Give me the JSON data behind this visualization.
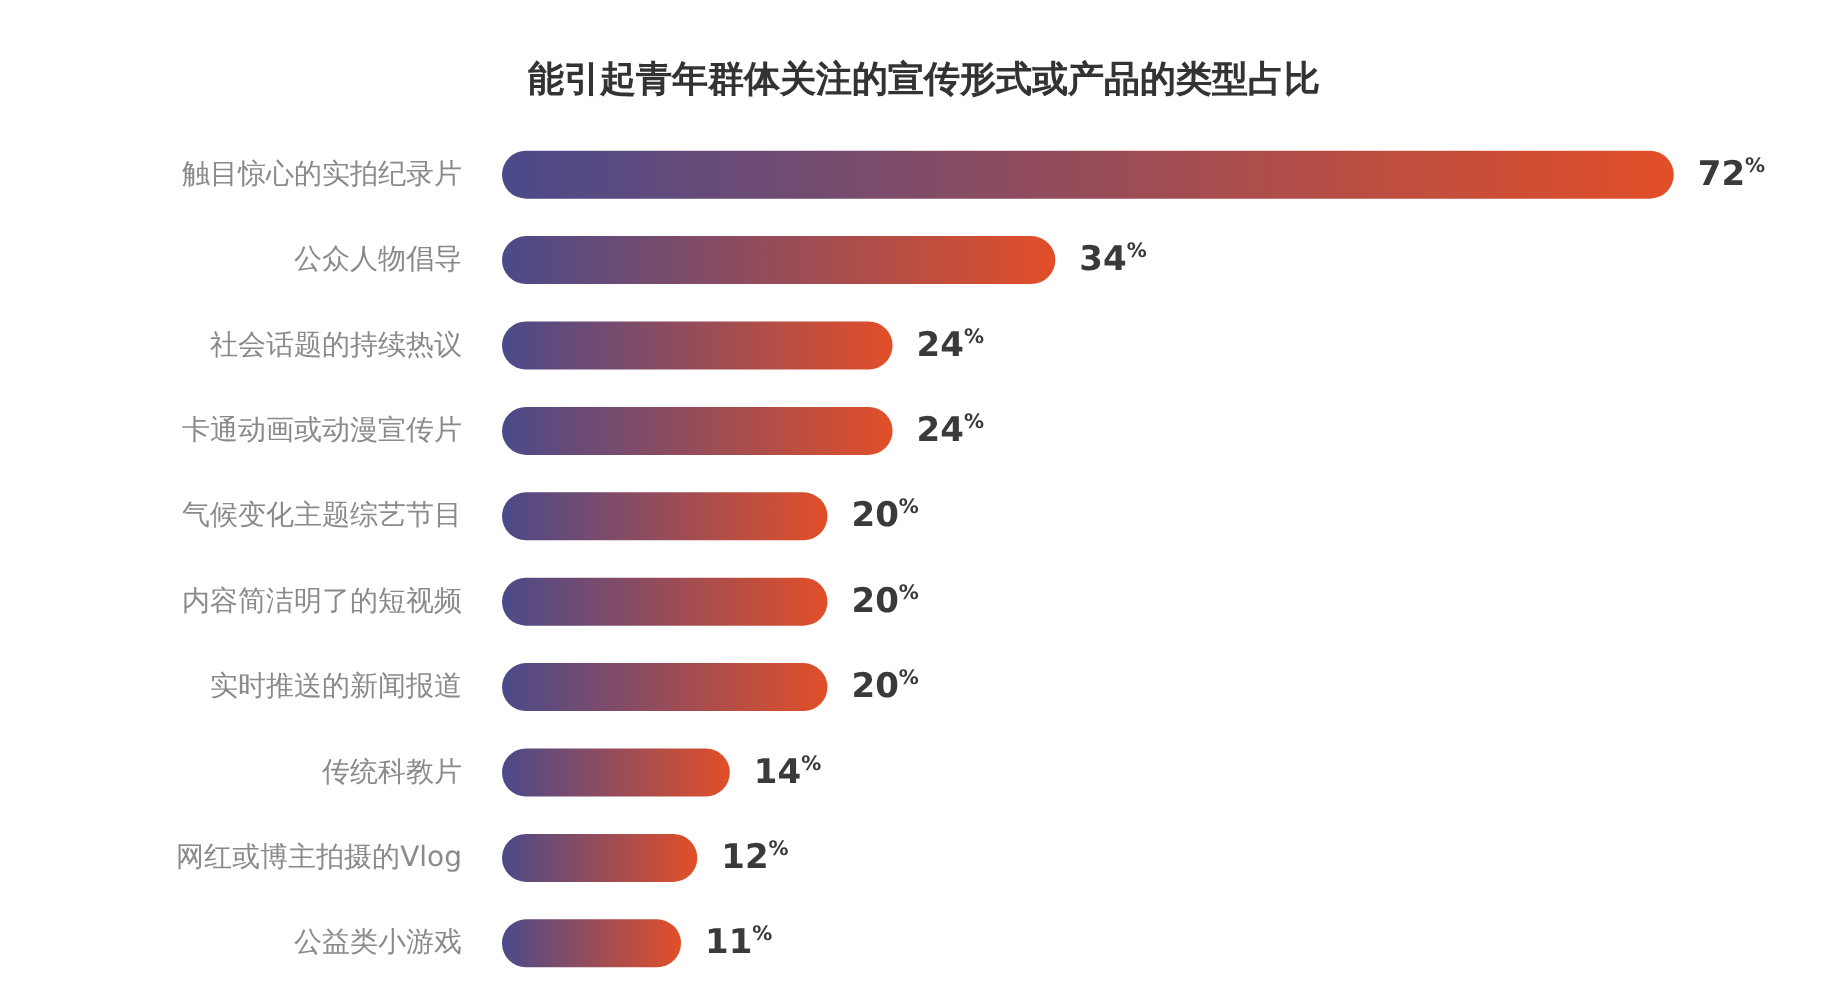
{
  "chart_data": {
    "type": "bar",
    "orientation": "horizontal",
    "title": "能引起青年群体关注的宣传形式或产品的类型占比",
    "categories": [
      "触目惊心的实拍纪录片",
      "公众人物倡导",
      "社会话题的持续热议",
      "卡通动画或动漫宣传片",
      "气候变化主题综艺节目",
      "内容简洁明了的短视频",
      "实时推送的新闻报道",
      "传统科教片",
      "网红或博主拍摄的Vlog",
      "公益类小游戏"
    ],
    "values": [
      72,
      34,
      24,
      24,
      20,
      20,
      20,
      14,
      12,
      11
    ],
    "value_labels": [
      "72%",
      "34%",
      "24%",
      "24%",
      "20%",
      "20%",
      "20%",
      "14%",
      "12%",
      "11%"
    ],
    "color": "#e24f28"
  }
}
